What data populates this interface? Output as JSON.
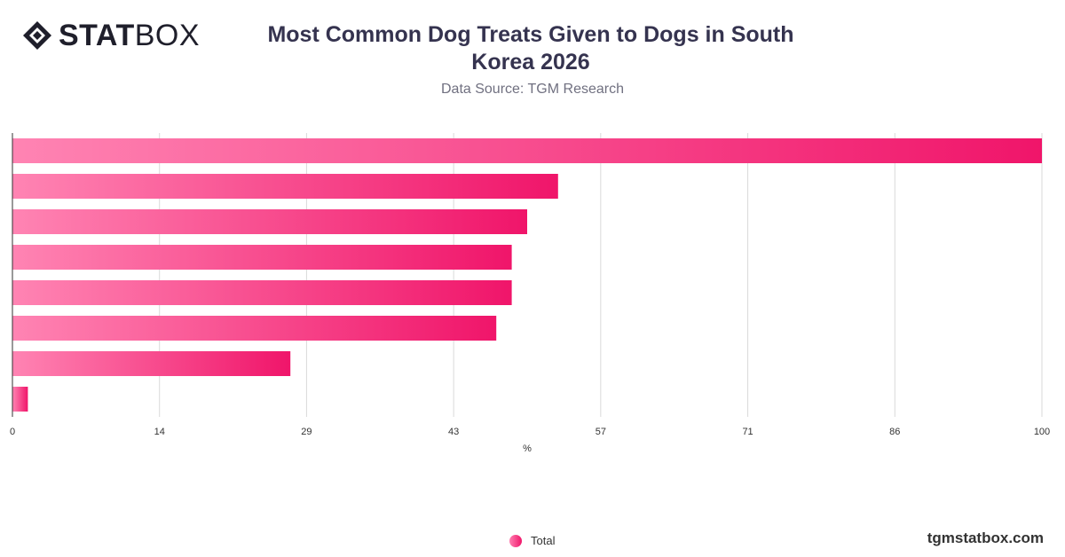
{
  "brand": {
    "name_bold": "STAT",
    "name_light": "BOX"
  },
  "header": {
    "title": "Most Common Dog Treats Given to Dogs in South Korea 2026",
    "subtitle": "Data Source: TGM Research"
  },
  "footer": {
    "site": "tgmstatbox.com"
  },
  "colors": {
    "bar_start": "#ff84b3",
    "bar_end": "#f0156a",
    "grid": "#d9d9d9",
    "axis": "#333333"
  },
  "chart_data": {
    "type": "bar",
    "orientation": "horizontal",
    "categories": [
      "",
      "",
      "",
      "",
      "",
      "",
      "",
      ""
    ],
    "series": [
      {
        "name": "Total",
        "values": [
          100,
          53,
          50,
          48.5,
          48.5,
          47,
          27,
          1.5
        ]
      }
    ],
    "xlabel": "%",
    "xlim": [
      0,
      100
    ],
    "xticks": [
      "0",
      "14",
      "29",
      "43",
      "57",
      "71",
      "86",
      "100"
    ],
    "grid": true,
    "legend": "bottom-center"
  }
}
